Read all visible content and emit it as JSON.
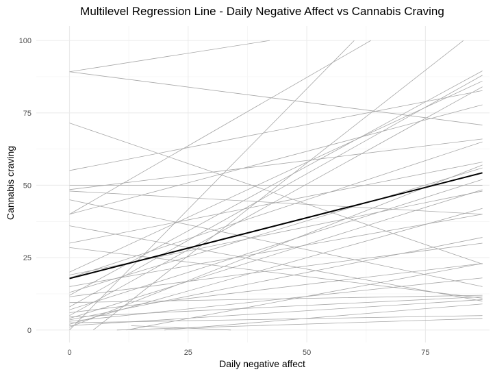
{
  "chart_data": {
    "type": "line",
    "title": "Multilevel Regression Line - Daily Negative Affect vs Cannabis Craving",
    "xlabel": "Daily negative affect",
    "ylabel": "Cannabis craving",
    "xlim": [
      -7,
      88.5
    ],
    "ylim": [
      -4.3,
      105
    ],
    "x_ticks": [
      0,
      25,
      50,
      75
    ],
    "y_ticks": [
      0,
      25,
      50,
      75,
      100
    ],
    "x_tick_labels": [
      "0",
      "25",
      "50",
      "75"
    ],
    "y_tick_labels": [
      "0",
      "25",
      "50",
      "75",
      "100"
    ],
    "grid": true,
    "legend": "none",
    "colors": {
      "subject_line": "#a6a6a6",
      "fixed_line": "#000000",
      "grid_major": "#ebebeb",
      "grid_minor": "#f4f4f4"
    },
    "fixed_effect": {
      "x": [
        0,
        87
      ],
      "y": [
        17.8,
        54.3
      ]
    },
    "subject_lines": [
      {
        "x": [
          0,
          42.2
        ],
        "y": [
          89.2,
          100
        ]
      },
      {
        "x": [
          0,
          87
        ],
        "y": [
          89.2,
          70.8
        ]
      },
      {
        "x": [
          0,
          87
        ],
        "y": [
          71.5,
          22.8
        ]
      },
      {
        "x": [
          0,
          87
        ],
        "y": [
          55.1,
          82.7
        ]
      },
      {
        "x": [
          0,
          87
        ],
        "y": [
          50,
          50
        ]
      },
      {
        "x": [
          0,
          87
        ],
        "y": [
          48.5,
          66
        ]
      },
      {
        "x": [
          0,
          87
        ],
        "y": [
          48,
          40
        ]
      },
      {
        "x": [
          0,
          87
        ],
        "y": [
          45,
          15
        ]
      },
      {
        "x": [
          0,
          87
        ],
        "y": [
          40,
          77.8
        ]
      },
      {
        "x": [
          0,
          63.5
        ],
        "y": [
          40,
          100
        ]
      },
      {
        "x": [
          0,
          87
        ],
        "y": [
          36,
          10
        ]
      },
      {
        "x": [
          0,
          87
        ],
        "y": [
          30,
          58
        ]
      },
      {
        "x": [
          0,
          87
        ],
        "y": [
          28.5,
          11
        ]
      },
      {
        "x": [
          0,
          87
        ],
        "y": [
          20,
          86
        ]
      },
      {
        "x": [
          0,
          87
        ],
        "y": [
          19,
          48
        ]
      },
      {
        "x": [
          0,
          87
        ],
        "y": [
          18,
          65
        ]
      },
      {
        "x": [
          0,
          87
        ],
        "y": [
          15,
          40
        ]
      },
      {
        "x": [
          0,
          87
        ],
        "y": [
          13,
          56
        ]
      },
      {
        "x": [
          0,
          87
        ],
        "y": [
          12,
          89.5
        ]
      },
      {
        "x": [
          0,
          87
        ],
        "y": [
          11.5,
          30
        ]
      },
      {
        "x": [
          0,
          87
        ],
        "y": [
          9.5,
          12
        ]
      },
      {
        "x": [
          0,
          87
        ],
        "y": [
          8,
          88
        ]
      },
      {
        "x": [
          0,
          87
        ],
        "y": [
          7,
          52
        ]
      },
      {
        "x": [
          0,
          87
        ],
        "y": [
          6,
          23
        ]
      },
      {
        "x": [
          0,
          87
        ],
        "y": [
          5,
          84
        ]
      },
      {
        "x": [
          0,
          87
        ],
        "y": [
          4.5,
          11.5
        ]
      },
      {
        "x": [
          0,
          87
        ],
        "y": [
          4,
          48.5
        ]
      },
      {
        "x": [
          0,
          87
        ],
        "y": [
          3.5,
          32
        ]
      },
      {
        "x": [
          0,
          87
        ],
        "y": [
          3,
          18
        ]
      },
      {
        "x": [
          0,
          87
        ],
        "y": [
          2.5,
          5
        ]
      },
      {
        "x": [
          0,
          87
        ],
        "y": [
          2,
          42
        ]
      },
      {
        "x": [
          0,
          87
        ],
        "y": [
          1.5,
          10.5
        ]
      },
      {
        "x": [
          0,
          87
        ],
        "y": [
          1,
          57
        ]
      },
      {
        "x": [
          0,
          60
        ],
        "y": [
          0,
          100
        ]
      },
      {
        "x": [
          5,
          83
        ],
        "y": [
          0,
          100
        ]
      },
      {
        "x": [
          12,
          87
        ],
        "y": [
          0,
          23
        ]
      },
      {
        "x": [
          13,
          34
        ],
        "y": [
          1.5,
          0
        ]
      },
      {
        "x": [
          20,
          87
        ],
        "y": [
          0,
          9
        ]
      },
      {
        "x": [
          10,
          87
        ],
        "y": [
          0,
          4
        ]
      }
    ]
  }
}
